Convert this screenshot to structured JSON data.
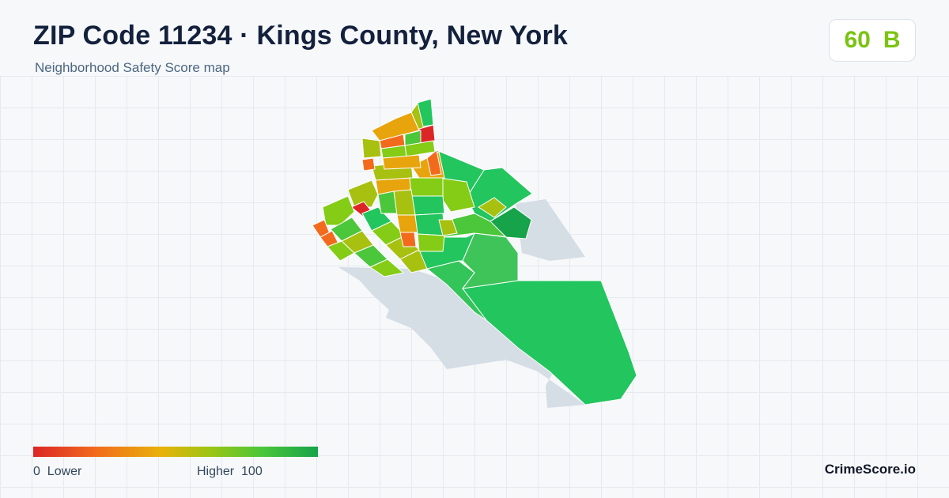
{
  "header": {
    "title": "ZIP Code 11234 · Kings County, New York",
    "subtitle": "Neighborhood Safety Score map"
  },
  "score": {
    "value": "60",
    "grade": "B",
    "color": "#7ac412"
  },
  "legend": {
    "low_value": "0",
    "low_label": "Lower",
    "high_label": "Higher",
    "high_value": "100",
    "colors": [
      "#dc2626",
      "#f26b1d",
      "#e8b20a",
      "#9cc514",
      "#4cc63a",
      "#16a34a"
    ]
  },
  "brand": "CrimeScore.io",
  "map_colors": {
    "water_land": "#d5dde5",
    "red": "#dc2626",
    "orange": "#f26b1d",
    "amber": "#e8a40d",
    "yellow_green": "#a8c010",
    "lime": "#84cc16",
    "green": "#22c55e",
    "green_mid": "#3fc45a",
    "green_dark": "#16a34a"
  }
}
